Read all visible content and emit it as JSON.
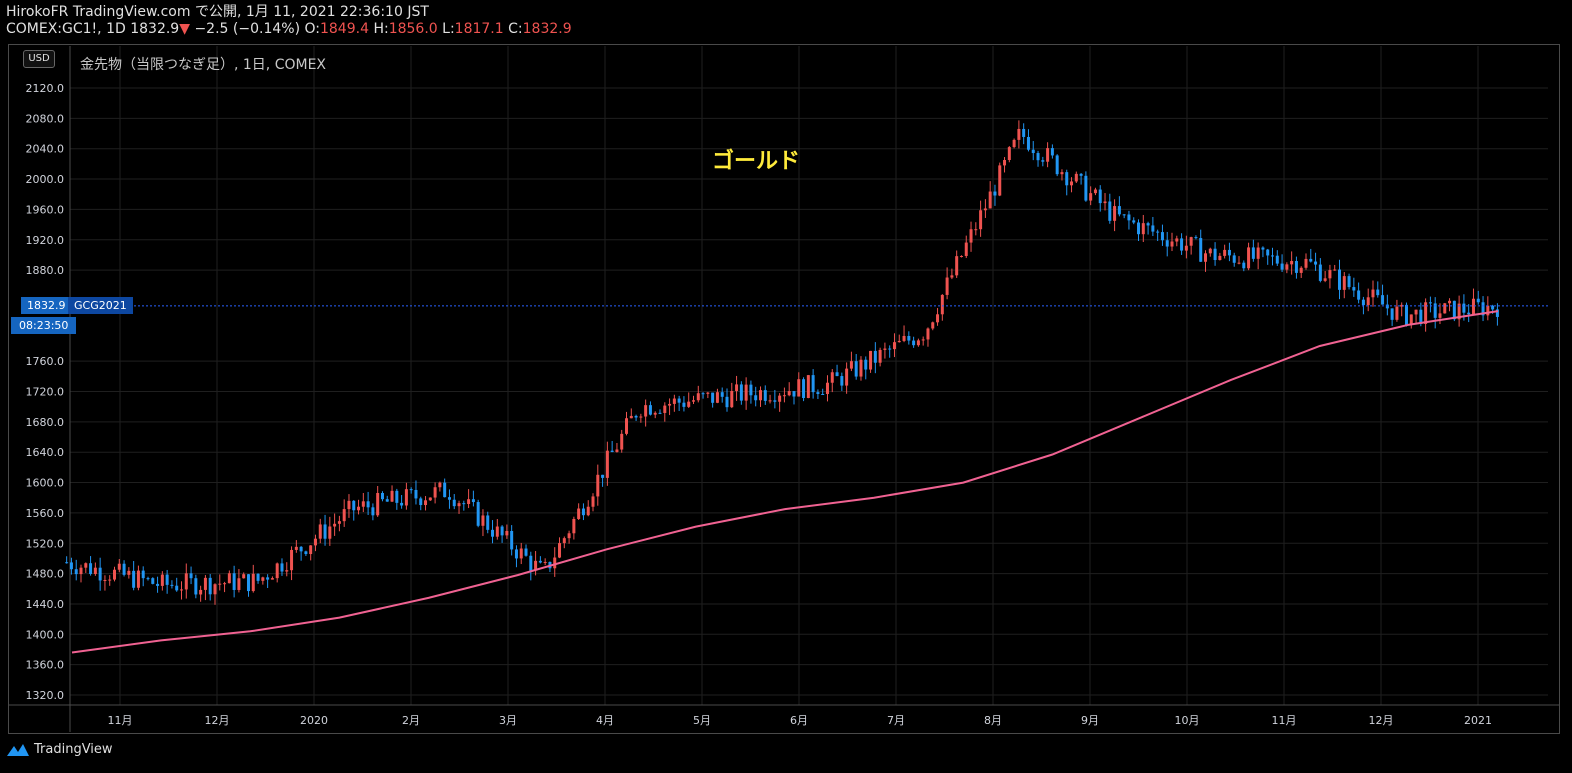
{
  "header": {
    "line1": "HirokoFR TradingView.com で公開, 1月 11, 2021 22:36:10 JST",
    "symbol_tf": "COMEX:GC1!, 1D",
    "last": "1832.9",
    "arrow": "▼",
    "change": "−2.5 (−0.14%)",
    "o_label": "O:",
    "o_value": "1849.4",
    "h_label": "H:",
    "h_value": "1856.0",
    "l_label": "L:",
    "l_value": "1817.1",
    "c_label": "C:",
    "c_value": "1832.9"
  },
  "currency": "USD",
  "symbol_desc": "金先物（当限つなぎ足）, 1日, COMEX",
  "annotation": "ゴールド",
  "price_tag": "1832.9",
  "contract_tag": "GCG2021",
  "countdown": "08:23:50",
  "brand": "TradingView",
  "colors": {
    "up": "#ef5350",
    "down": "#2196f3",
    "ma": "#f06292",
    "annotation": "#ffeb3b"
  },
  "chart_data": {
    "type": "candlestick",
    "ylim": [
      1300,
      2150
    ],
    "yticks": [
      1320,
      1360,
      1400,
      1440,
      1480,
      1520,
      1560,
      1600,
      1640,
      1680,
      1720,
      1760,
      1880,
      1920,
      1960,
      2000,
      2040,
      2080,
      2120
    ],
    "xticks": [
      "11月",
      "12月",
      "2020",
      "2月",
      "3月",
      "4月",
      "5月",
      "6月",
      "7月",
      "8月",
      "9月",
      "10月",
      "11月",
      "12月",
      "2021"
    ],
    "price_line": 1832.9,
    "anchors": [
      {
        "m": "2019-10",
        "c": 1495
      },
      {
        "m": "2019-11",
        "c": 1465
      },
      {
        "m": "2019-12",
        "c": 1470
      },
      {
        "m": "2020-01",
        "c": 1565
      },
      {
        "m": "2020-02",
        "c": 1590
      },
      {
        "m": "2020-03",
        "c": 1480
      },
      {
        "m": "2020-04",
        "c": 1700
      },
      {
        "m": "2020-05",
        "c": 1715
      },
      {
        "m": "2020-06",
        "c": 1730
      },
      {
        "m": "2020-07",
        "c": 1800
      },
      {
        "m": "2020-08",
        "c": 2060
      },
      {
        "m": "2020-09",
        "c": 1950
      },
      {
        "m": "2020-10",
        "c": 1900
      },
      {
        "m": "2020-11",
        "c": 1890
      },
      {
        "m": "2020-12",
        "c": 1820
      },
      {
        "m": "2021-01",
        "c": 1832.9
      }
    ],
    "ma_series": {
      "values": [
        1376,
        1392,
        1404,
        1422,
        1448,
        1478,
        1512,
        1542,
        1565,
        1580,
        1600,
        1637,
        1686,
        1735,
        1780,
        1808,
        1826
      ]
    }
  }
}
